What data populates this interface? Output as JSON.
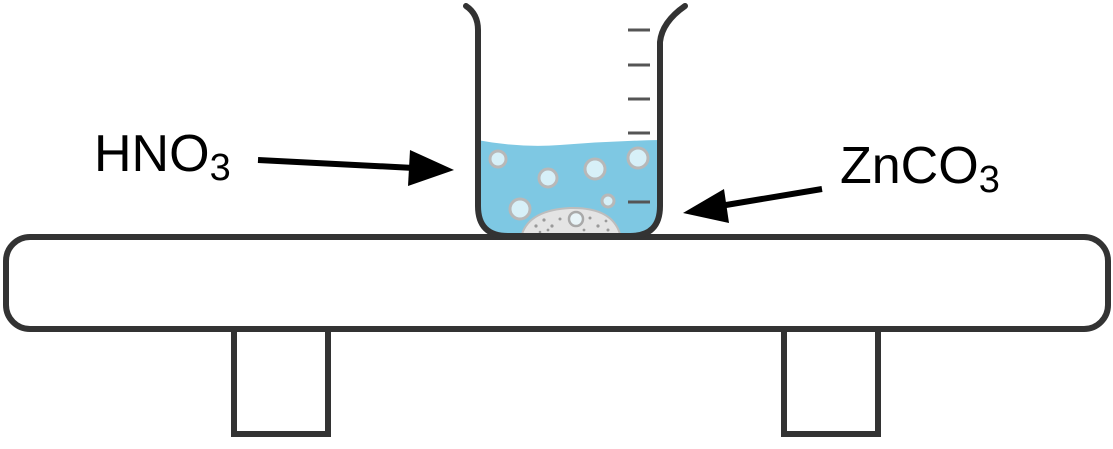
{
  "labels": {
    "left": {
      "base": "HNO",
      "sub": "3"
    },
    "right": {
      "base": "ZnCO",
      "sub": "3"
    }
  },
  "colors": {
    "outline": "#333333",
    "liquid": "#7ec8e3",
    "bubble_fill": "#d7f0f8",
    "bubble_stroke": "#b8b8b8",
    "solid": "#e2e2e2",
    "graduation": "#555555",
    "arrow": "#000000"
  },
  "icons": {
    "beaker": "beaker-icon",
    "table": "lab-bench-icon",
    "arrow": "arrow-icon"
  }
}
